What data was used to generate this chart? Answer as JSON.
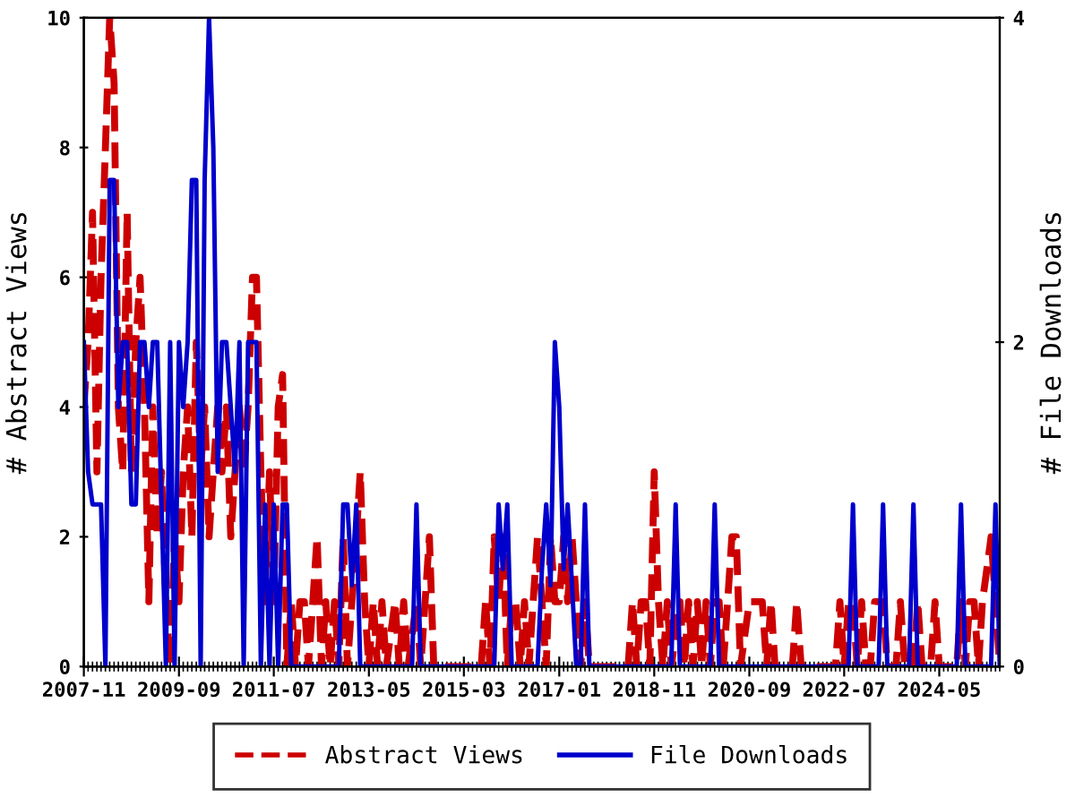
{
  "chart_data": {
    "type": "line",
    "ylabel": "# Abstract Views",
    "y2label": "# File Downloads",
    "xlim": [
      "2007-11",
      "2025-07"
    ],
    "xticks": [
      "2007-11",
      "2009-09",
      "2011-07",
      "2013-05",
      "2015-03",
      "2017-01",
      "2018-11",
      "2020-09",
      "2022-07",
      "2024-05"
    ],
    "ylim": [
      0,
      10
    ],
    "yticks": [
      0,
      2,
      4,
      6,
      8,
      10
    ],
    "y2lim": [
      0,
      4
    ],
    "y2ticks": [
      0,
      2,
      4
    ],
    "grid": false,
    "legend": "bottom",
    "series": [
      {
        "name": "Abstract Views",
        "color": "#cc0000",
        "line_style": "dashed",
        "axis": "y",
        "x": [
          "2007-11",
          "2007-12",
          "2008-01",
          "2008-02",
          "2008-03",
          "2008-04",
          "2008-05",
          "2008-06",
          "2008-07",
          "2008-08",
          "2008-09",
          "2008-10",
          "2008-11",
          "2008-12",
          "2009-01",
          "2009-02",
          "2009-03",
          "2009-04",
          "2009-05",
          "2009-06",
          "2009-07",
          "2009-08",
          "2009-09",
          "2009-10",
          "2009-11",
          "2009-12",
          "2010-01",
          "2010-02",
          "2010-03",
          "2010-04",
          "2010-05",
          "2010-06",
          "2010-07",
          "2010-08",
          "2010-09",
          "2010-10",
          "2010-11",
          "2010-12",
          "2011-01",
          "2011-02",
          "2011-03",
          "2011-04",
          "2011-05",
          "2011-06",
          "2011-07",
          "2011-08",
          "2011-09",
          "2011-10",
          "2011-11",
          "2011-12",
          "2012-01",
          "2012-02",
          "2012-03",
          "2012-04",
          "2012-05",
          "2012-06",
          "2012-07",
          "2012-08",
          "2012-09",
          "2012-10",
          "2012-11",
          "2012-12",
          "2013-01",
          "2013-02",
          "2013-03",
          "2013-04",
          "2013-05",
          "2013-06",
          "2013-07",
          "2013-08",
          "2013-09",
          "2013-11",
          "2013-12",
          "2014-01",
          "2014-02",
          "2014-04",
          "2014-05",
          "2014-06",
          "2014-07",
          "2014-08",
          "2015-07",
          "2015-08",
          "2015-09",
          "2015-10",
          "2015-11",
          "2015-12",
          "2016-01",
          "2016-02",
          "2016-03",
          "2016-04",
          "2016-05",
          "2016-06",
          "2016-07",
          "2016-08",
          "2016-09",
          "2016-10",
          "2016-11",
          "2016-12",
          "2017-01",
          "2017-02",
          "2017-03",
          "2017-04",
          "2017-05",
          "2017-06",
          "2017-07",
          "2017-08",
          "2018-05",
          "2018-06",
          "2018-07",
          "2018-08",
          "2018-09",
          "2018-10",
          "2018-11",
          "2018-12",
          "2019-01",
          "2019-02",
          "2019-03",
          "2019-05",
          "2019-06",
          "2019-07",
          "2019-08",
          "2019-09",
          "2019-10",
          "2019-11",
          "2019-12",
          "2020-01",
          "2020-02",
          "2020-03",
          "2020-04",
          "2020-05",
          "2020-06",
          "2020-07",
          "2020-09",
          "2020-10",
          "2020-11",
          "2020-12",
          "2021-01",
          "2021-02",
          "2021-03",
          "2021-07",
          "2021-08",
          "2021-09",
          "2022-05",
          "2022-06",
          "2022-07",
          "2022-08",
          "2022-09",
          "2022-10",
          "2022-11",
          "2022-12",
          "2023-01",
          "2023-02",
          "2023-03",
          "2023-04",
          "2023-05",
          "2023-07",
          "2023-08",
          "2023-09",
          "2023-11",
          "2023-12",
          "2024-01",
          "2024-03",
          "2024-04",
          "2024-05",
          "2024-09",
          "2024-10",
          "2024-11",
          "2024-12",
          "2025-01",
          "2025-02",
          "2025-03",
          "2025-04",
          "2025-05",
          "2025-06",
          "2025-07"
        ],
        "values": [
          4,
          5,
          7,
          3,
          6,
          8,
          10,
          9,
          4,
          3,
          7,
          3,
          5,
          6,
          4,
          1,
          4,
          2,
          3,
          1,
          0,
          2,
          1,
          3,
          4,
          2,
          5,
          3,
          4,
          2,
          3,
          4,
          3,
          4,
          2,
          3,
          4,
          3,
          4,
          6,
          6,
          3,
          1,
          3,
          1,
          4,
          4.5,
          0,
          1,
          0,
          1,
          1,
          0,
          1,
          2,
          0,
          1,
          0,
          1,
          0,
          2,
          0,
          1,
          2,
          3,
          1,
          0,
          1,
          0,
          1,
          0,
          1,
          0,
          1,
          0,
          1,
          0,
          1,
          2,
          0,
          0,
          1,
          0,
          2,
          1,
          2,
          0,
          1,
          1,
          0,
          1,
          0,
          1,
          2,
          1,
          0,
          2,
          1,
          1,
          2,
          1,
          2,
          1,
          0,
          1,
          0,
          0,
          1,
          0,
          1,
          1,
          0,
          3,
          1,
          0,
          1,
          0,
          1,
          0,
          1,
          0,
          1,
          0,
          1,
          0,
          1,
          1,
          0,
          1,
          2,
          2,
          0,
          1,
          1,
          1,
          1,
          0,
          1,
          0,
          0,
          1,
          0,
          0,
          1,
          0,
          1,
          1,
          0,
          1,
          0,
          0,
          1,
          1,
          1,
          0,
          0,
          1,
          0,
          0,
          1,
          0,
          0,
          1,
          0,
          0,
          1,
          0,
          1,
          1,
          0,
          1,
          1.5,
          2,
          1,
          0
        ]
      },
      {
        "name": "File Downloads",
        "color": "#0000cc",
        "line_style": "solid",
        "axis": "y2",
        "x": [
          "2007-11",
          "2007-12",
          "2008-01",
          "2008-03",
          "2008-04",
          "2008-05",
          "2008-06",
          "2008-07",
          "2008-08",
          "2008-09",
          "2008-10",
          "2008-11",
          "2008-12",
          "2009-01",
          "2009-02",
          "2009-03",
          "2009-04",
          "2009-05",
          "2009-06",
          "2009-07",
          "2009-08",
          "2009-09",
          "2009-10",
          "2009-11",
          "2009-12",
          "2010-01",
          "2010-02",
          "2010-03",
          "2010-04",
          "2010-05",
          "2010-06",
          "2010-07",
          "2010-08",
          "2010-09",
          "2010-10",
          "2010-11",
          "2010-12",
          "2011-01",
          "2011-02",
          "2011-03",
          "2011-04",
          "2011-05",
          "2011-06",
          "2011-07",
          "2011-08",
          "2011-09",
          "2011-10",
          "2011-11",
          "2012-10",
          "2012-11",
          "2012-12",
          "2013-01",
          "2013-02",
          "2013-03",
          "2014-03",
          "2014-04",
          "2014-05",
          "2015-10",
          "2015-11",
          "2015-12",
          "2016-01",
          "2016-02",
          "2016-08",
          "2016-09",
          "2016-10",
          "2016-11",
          "2016-12",
          "2017-01",
          "2017-02",
          "2017-03",
          "2017-04",
          "2017-05",
          "2017-06",
          "2017-07",
          "2017-08",
          "2019-03",
          "2019-04",
          "2019-05",
          "2019-12",
          "2020-01",
          "2020-02",
          "2022-08",
          "2022-09",
          "2022-10",
          "2023-03",
          "2023-04",
          "2023-05",
          "2023-10",
          "2023-11",
          "2023-12",
          "2024-09",
          "2024-10",
          "2024-11",
          "2025-05",
          "2025-06",
          "2025-07"
        ],
        "values": [
          2,
          1.2,
          1,
          1,
          0,
          3,
          3,
          1.6,
          2,
          2,
          1,
          1,
          2,
          2,
          1.6,
          2,
          2,
          1,
          0,
          2,
          0,
          2,
          1.6,
          2,
          3,
          3,
          0,
          3,
          4,
          3.2,
          1.2,
          2,
          2,
          1.6,
          1.2,
          2,
          0,
          2,
          2,
          2,
          0,
          1,
          0,
          1,
          0,
          1,
          1,
          0,
          0,
          1,
          1,
          0.5,
          1,
          0,
          0,
          1,
          0,
          0,
          1,
          0.6,
          1,
          0,
          0,
          0.6,
          1,
          0.5,
          2,
          1.6,
          0.6,
          1,
          0.5,
          0,
          0,
          1,
          0,
          0,
          1,
          0,
          0,
          1,
          0,
          0,
          1,
          0,
          0,
          1,
          0,
          0,
          1,
          0,
          0,
          1,
          0,
          0,
          1,
          0
        ]
      }
    ]
  }
}
